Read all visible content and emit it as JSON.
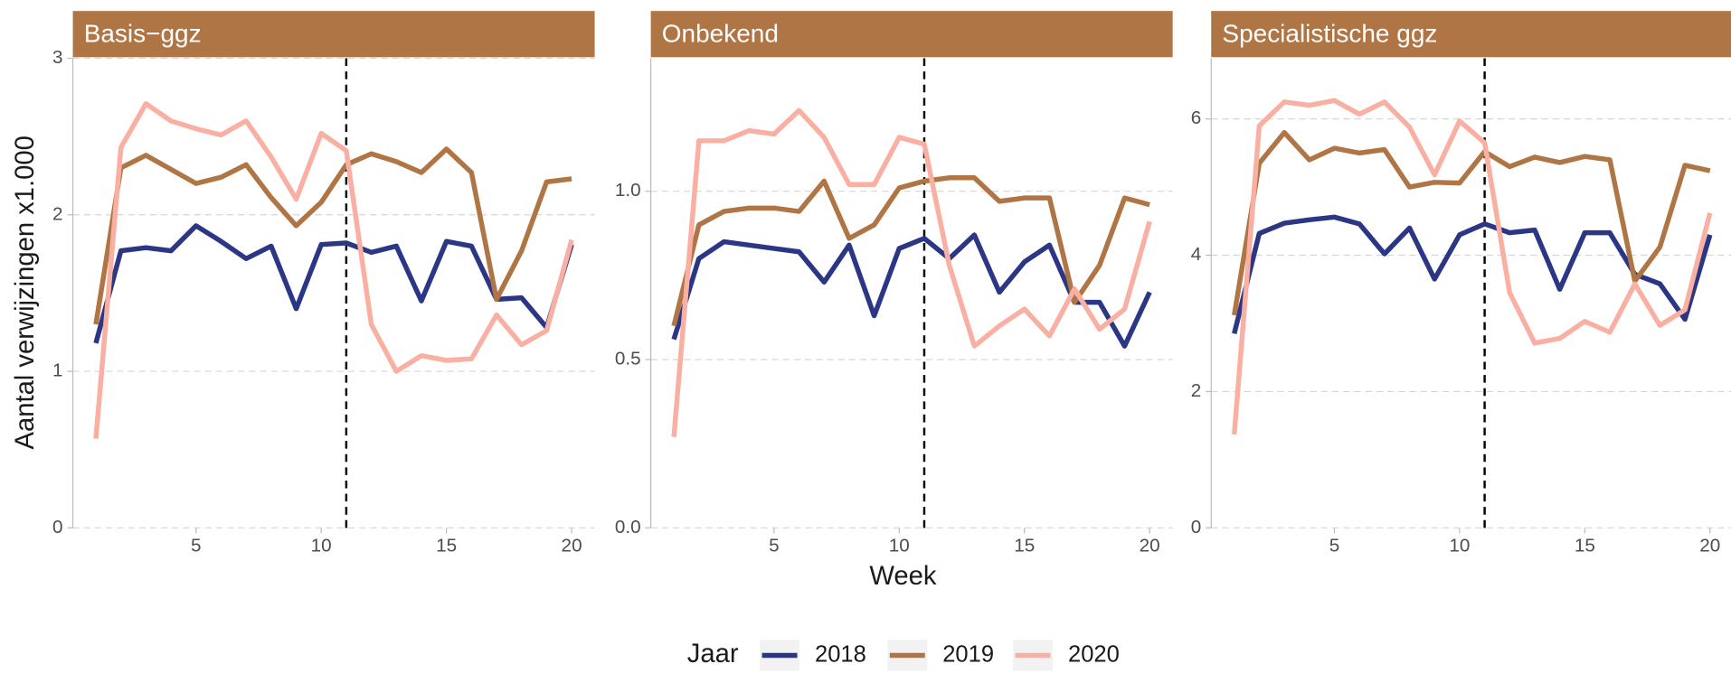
{
  "chart_data": [
    {
      "type": "line",
      "title": "Basis−ggz",
      "y_label": "Aantal verwijzingen x1.000",
      "legend_title": "Jaar",
      "x": [
        1,
        2,
        3,
        4,
        5,
        6,
        7,
        8,
        9,
        10,
        11,
        12,
        13,
        14,
        15,
        16,
        17,
        18,
        19,
        20
      ],
      "series": [
        {
          "name": "2018",
          "color": "#2b3784",
          "values": [
            1.18,
            1.77,
            1.79,
            1.77,
            1.93,
            1.83,
            1.72,
            1.8,
            1.4,
            1.81,
            1.82,
            1.76,
            1.8,
            1.45,
            1.83,
            1.8,
            1.46,
            1.47,
            1.28,
            1.81
          ]
        },
        {
          "name": "2019",
          "color": "#b07545",
          "values": [
            1.3,
            2.3,
            2.38,
            2.29,
            2.2,
            2.24,
            2.32,
            2.11,
            1.93,
            2.08,
            2.32,
            2.39,
            2.34,
            2.27,
            2.42,
            2.27,
            1.46,
            1.77,
            2.21,
            2.23
          ]
        },
        {
          "name": "2020",
          "color": "#f9b0a3",
          "values": [
            0.57,
            2.43,
            2.71,
            2.6,
            2.55,
            2.51,
            2.6,
            2.37,
            2.1,
            2.52,
            2.41,
            1.3,
            1.0,
            1.1,
            1.07,
            1.08,
            1.36,
            1.17,
            1.26,
            1.84
          ]
        }
      ],
      "xlim": [
        0.08,
        20.92
      ],
      "xticks": [
        5,
        10,
        15,
        20
      ],
      "ylim": [
        0,
        3
      ],
      "yticks": [
        0,
        1,
        2,
        3
      ],
      "vline": 11,
      "grid": true
    },
    {
      "type": "line",
      "title": "Onbekend",
      "x_label": "Week",
      "x": [
        1,
        2,
        3,
        4,
        5,
        6,
        7,
        8,
        9,
        10,
        11,
        12,
        13,
        14,
        15,
        16,
        17,
        18,
        19,
        20
      ],
      "series": [
        {
          "name": "2018",
          "color": "#2b3784",
          "values": [
            0.56,
            0.8,
            0.85,
            0.84,
            0.83,
            0.82,
            0.73,
            0.84,
            0.63,
            0.83,
            0.86,
            0.8,
            0.87,
            0.7,
            0.79,
            0.84,
            0.67,
            0.67,
            0.54,
            0.7
          ]
        },
        {
          "name": "2019",
          "color": "#b07545",
          "values": [
            0.6,
            0.9,
            0.94,
            0.95,
            0.95,
            0.94,
            1.03,
            0.86,
            0.9,
            1.01,
            1.03,
            1.04,
            1.04,
            0.97,
            0.98,
            0.98,
            0.67,
            0.78,
            0.98,
            0.96
          ]
        },
        {
          "name": "2020",
          "color": "#f9b0a3",
          "values": [
            0.27,
            1.15,
            1.15,
            1.18,
            1.17,
            1.24,
            1.16,
            1.02,
            1.02,
            1.16,
            1.14,
            0.78,
            0.54,
            0.6,
            0.65,
            0.57,
            0.71,
            0.59,
            0.65,
            0.91
          ]
        }
      ],
      "xlim": [
        0.08,
        20.92
      ],
      "xticks": [
        5,
        10,
        15,
        20
      ],
      "ylim": [
        0,
        1.395
      ],
      "yticks": [
        {
          "value": 0,
          "label": "0.0"
        },
        {
          "value": 0.5,
          "label": "0.5"
        },
        {
          "value": 1,
          "label": "1.0"
        }
      ],
      "vline": 11,
      "grid": true
    },
    {
      "type": "line",
      "title": "Specialistische ggz",
      "x": [
        1,
        2,
        3,
        4,
        5,
        6,
        7,
        8,
        9,
        10,
        11,
        12,
        13,
        14,
        15,
        16,
        17,
        18,
        19,
        20
      ],
      "series": [
        {
          "name": "2018",
          "color": "#2b3784",
          "values": [
            2.85,
            4.32,
            4.47,
            4.52,
            4.56,
            4.46,
            4.02,
            4.4,
            3.65,
            4.3,
            4.46,
            4.33,
            4.37,
            3.5,
            4.33,
            4.33,
            3.72,
            3.58,
            3.06,
            4.3
          ]
        },
        {
          "name": "2019",
          "color": "#b07545",
          "values": [
            3.12,
            5.35,
            5.8,
            5.4,
            5.57,
            5.5,
            5.55,
            5.0,
            5.07,
            5.06,
            5.52,
            5.3,
            5.44,
            5.36,
            5.45,
            5.4,
            3.62,
            4.12,
            5.32,
            5.24
          ]
        },
        {
          "name": "2020",
          "color": "#f9b0a3",
          "values": [
            1.37,
            5.9,
            6.25,
            6.2,
            6.27,
            6.07,
            6.25,
            5.88,
            5.18,
            5.97,
            5.65,
            3.45,
            2.71,
            2.78,
            3.03,
            2.87,
            3.58,
            2.97,
            3.2,
            4.62
          ]
        }
      ],
      "xlim": [
        0.08,
        20.92
      ],
      "xticks": [
        5,
        10,
        15,
        20
      ],
      "ylim": [
        0,
        6.89
      ],
      "yticks": [
        0,
        2,
        4,
        6
      ],
      "vline": 11,
      "grid": true
    }
  ]
}
